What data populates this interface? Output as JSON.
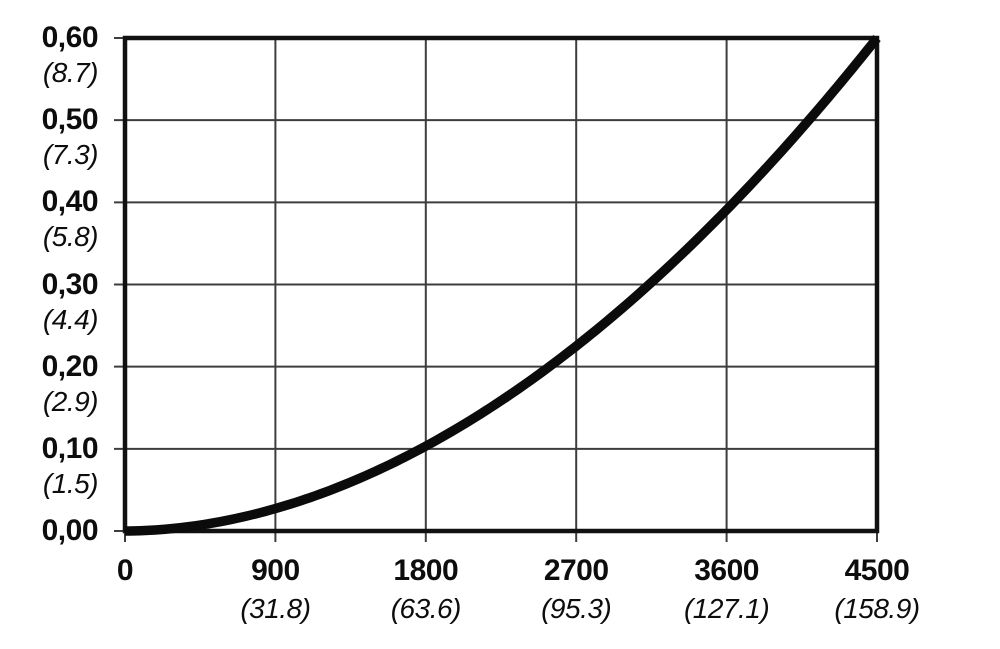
{
  "chart_data": {
    "type": "line",
    "title": "",
    "xlabel": "",
    "ylabel": "",
    "xlim": [
      0,
      4500
    ],
    "ylim": [
      0,
      0.6
    ],
    "grid": true,
    "legend": "none",
    "x_ticks": [
      {
        "value": 0,
        "label": "0",
        "sublabel": ""
      },
      {
        "value": 900,
        "label": "900",
        "sublabel": "(31.8)"
      },
      {
        "value": 1800,
        "label": "1800",
        "sublabel": "(63.6)"
      },
      {
        "value": 2700,
        "label": "2700",
        "sublabel": "(95.3)"
      },
      {
        "value": 3600,
        "label": "3600",
        "sublabel": "(127.1)"
      },
      {
        "value": 4500,
        "label": "4500",
        "sublabel": "(158.9)"
      }
    ],
    "y_ticks": [
      {
        "value": 0.0,
        "label": "0,00",
        "sublabel": ""
      },
      {
        "value": 0.1,
        "label": "0,10",
        "sublabel": "(1.5)"
      },
      {
        "value": 0.2,
        "label": "0,20",
        "sublabel": "(2.9)"
      },
      {
        "value": 0.3,
        "label": "0,30",
        "sublabel": "(4.4)"
      },
      {
        "value": 0.4,
        "label": "0,40",
        "sublabel": "(5.8)"
      },
      {
        "value": 0.5,
        "label": "0,50",
        "sublabel": "(7.3)"
      },
      {
        "value": 0.6,
        "label": "0,60",
        "sublabel": "(8.7)"
      }
    ],
    "series": [
      {
        "name": "curve",
        "x": [
          0,
          900,
          1800,
          2700,
          3600,
          4500
        ],
        "y": [
          0.0,
          0.03,
          0.1,
          0.22,
          0.39,
          0.6
        ],
        "fit": {
          "model": "power",
          "formula": "y = 0.6*(x/4500)^1.92",
          "scale": 0.6,
          "exponent": 1.92
        },
        "color": "#0b0b0b",
        "line_width": 9.5
      }
    ],
    "colors": {
      "frame": "#111111",
      "gridline": "#3d3d3d",
      "text": "#0d0d0d",
      "background": "#ffffff"
    }
  }
}
